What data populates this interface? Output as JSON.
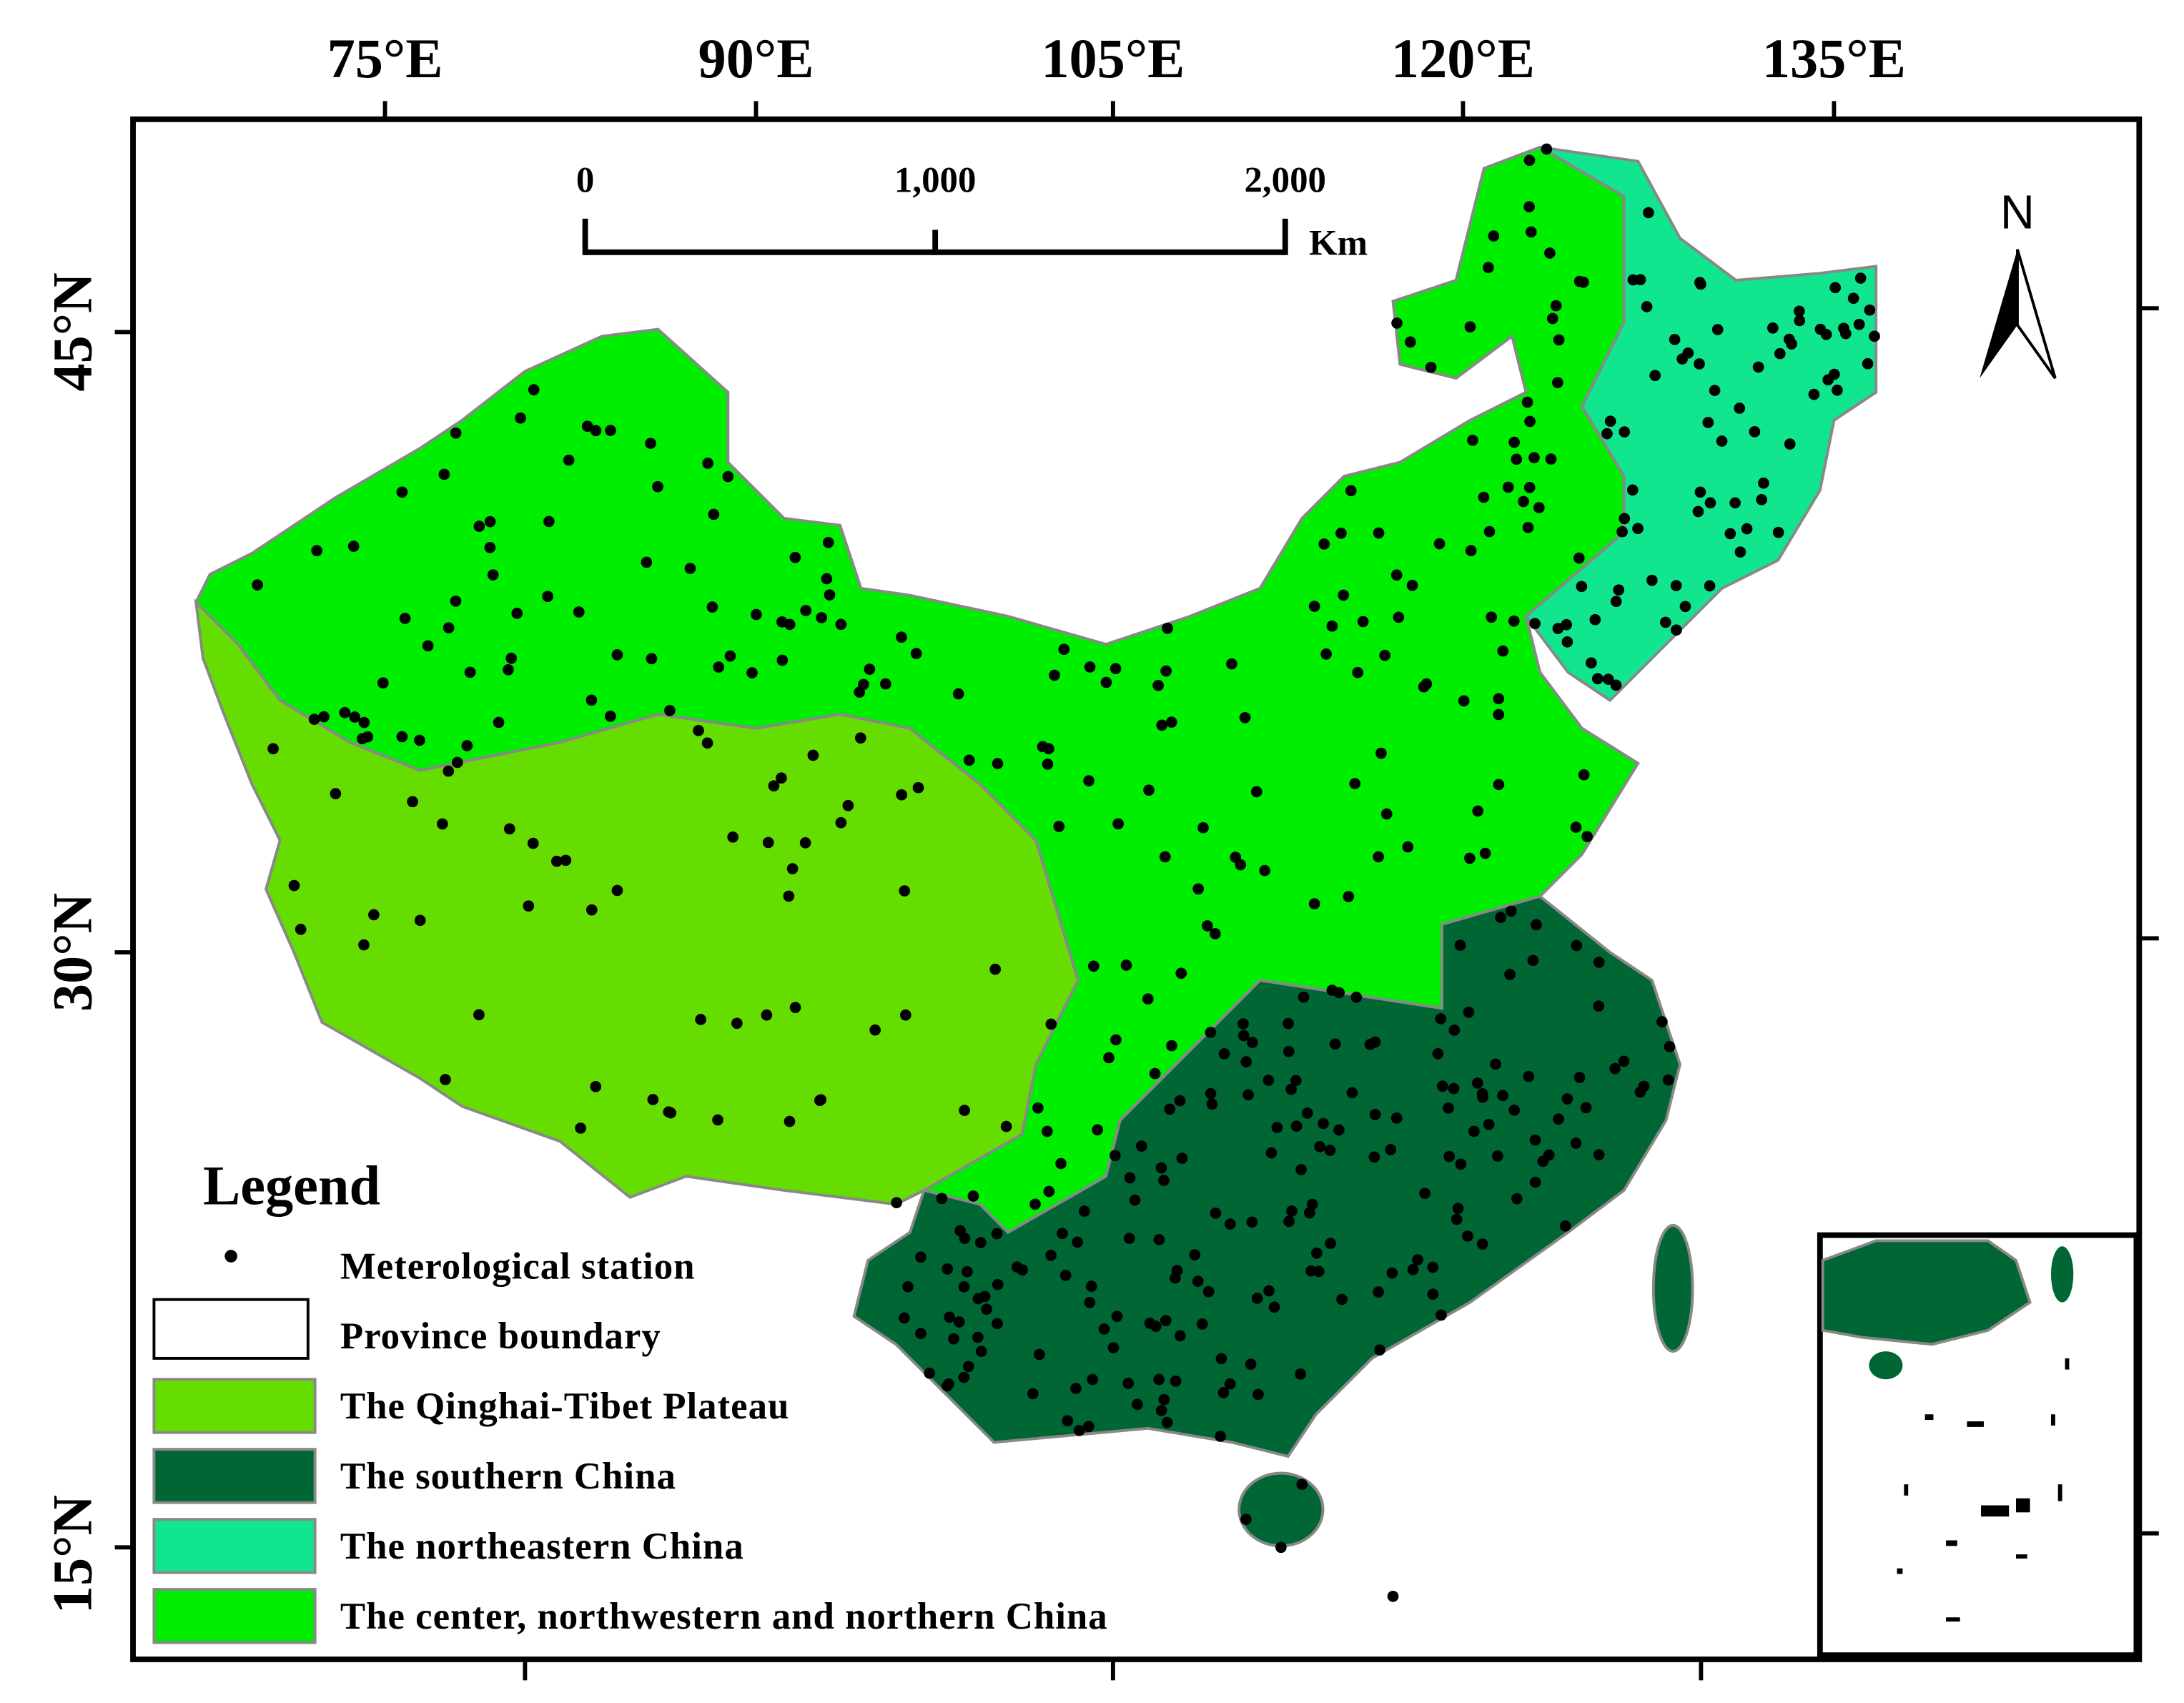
{
  "map": {
    "lon_labels": [
      "75°E",
      "90°E",
      "105°E",
      "120°E",
      "135°E"
    ],
    "lat_labels": [
      "45°N",
      "30°N",
      "15°N"
    ],
    "scale_bar": {
      "labels": [
        "0",
        "1,000",
        "2,000"
      ],
      "unit": "Km"
    },
    "north_arrow": "N",
    "legend": {
      "title": "Legend",
      "items": [
        "Meterological station",
        "Province boundary",
        "The Qinghai-Tibet Plateau",
        "The southern China",
        "The northeastern China",
        "The center, northwestern and northern China"
      ]
    }
  }
}
